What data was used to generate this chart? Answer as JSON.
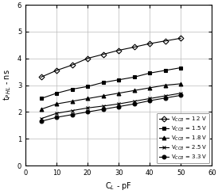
{
  "title": "",
  "xlabel": "C$_L$ - pF",
  "ylabel": "t$_{PHL}$ - ns",
  "xlim": [
    0,
    60
  ],
  "ylim": [
    0,
    6
  ],
  "xticks": [
    0,
    10,
    20,
    30,
    40,
    50,
    60
  ],
  "yticks": [
    0,
    1,
    2,
    3,
    4,
    5,
    6
  ],
  "cl_values": [
    5,
    10,
    15,
    20,
    25,
    30,
    35,
    40,
    45,
    50
  ],
  "series": [
    {
      "label": "V$_{CCB}$ = 1.2 V",
      "marker": "D",
      "fillstyle": "none",
      "color": "#000000",
      "linewidth": 0.8,
      "markersize": 3.5,
      "values": [
        3.3,
        3.55,
        3.75,
        4.0,
        4.15,
        4.3,
        4.42,
        4.55,
        4.65,
        4.75
      ]
    },
    {
      "label": "V$_{CCB}$ = 1.5 V",
      "marker": "s",
      "fillstyle": "full",
      "color": "#000000",
      "linewidth": 0.8,
      "markersize": 3.5,
      "values": [
        2.5,
        2.7,
        2.85,
        2.95,
        3.1,
        3.2,
        3.3,
        3.45,
        3.55,
        3.65
      ]
    },
    {
      "label": "V$_{CCB}$ = 1.8 V",
      "marker": "^",
      "fillstyle": "full",
      "color": "#000000",
      "linewidth": 0.8,
      "markersize": 3.5,
      "values": [
        2.1,
        2.3,
        2.4,
        2.5,
        2.6,
        2.7,
        2.8,
        2.9,
        3.0,
        3.05
      ]
    },
    {
      "label": "V$_{CCB}$ = 2.5 V",
      "marker": "x",
      "fillstyle": "full",
      "color": "#000000",
      "linewidth": 0.8,
      "markersize": 3.5,
      "values": [
        1.75,
        1.95,
        2.05,
        2.15,
        2.22,
        2.3,
        2.4,
        2.5,
        2.6,
        2.7
      ]
    },
    {
      "label": "V$_{CCB}$ = 3.3 V",
      "marker": "o",
      "fillstyle": "full",
      "color": "#000000",
      "linewidth": 0.8,
      "markersize": 3.5,
      "values": [
        1.65,
        1.8,
        1.9,
        2.0,
        2.1,
        2.2,
        2.3,
        2.42,
        2.52,
        2.62
      ]
    }
  ],
  "legend_fontsize": 5.0,
  "legend_loc": "lower right",
  "grid_color": "#bbbbbb",
  "background_color": "#ffffff",
  "tick_fontsize": 6.0,
  "label_fontsize": 7.0
}
